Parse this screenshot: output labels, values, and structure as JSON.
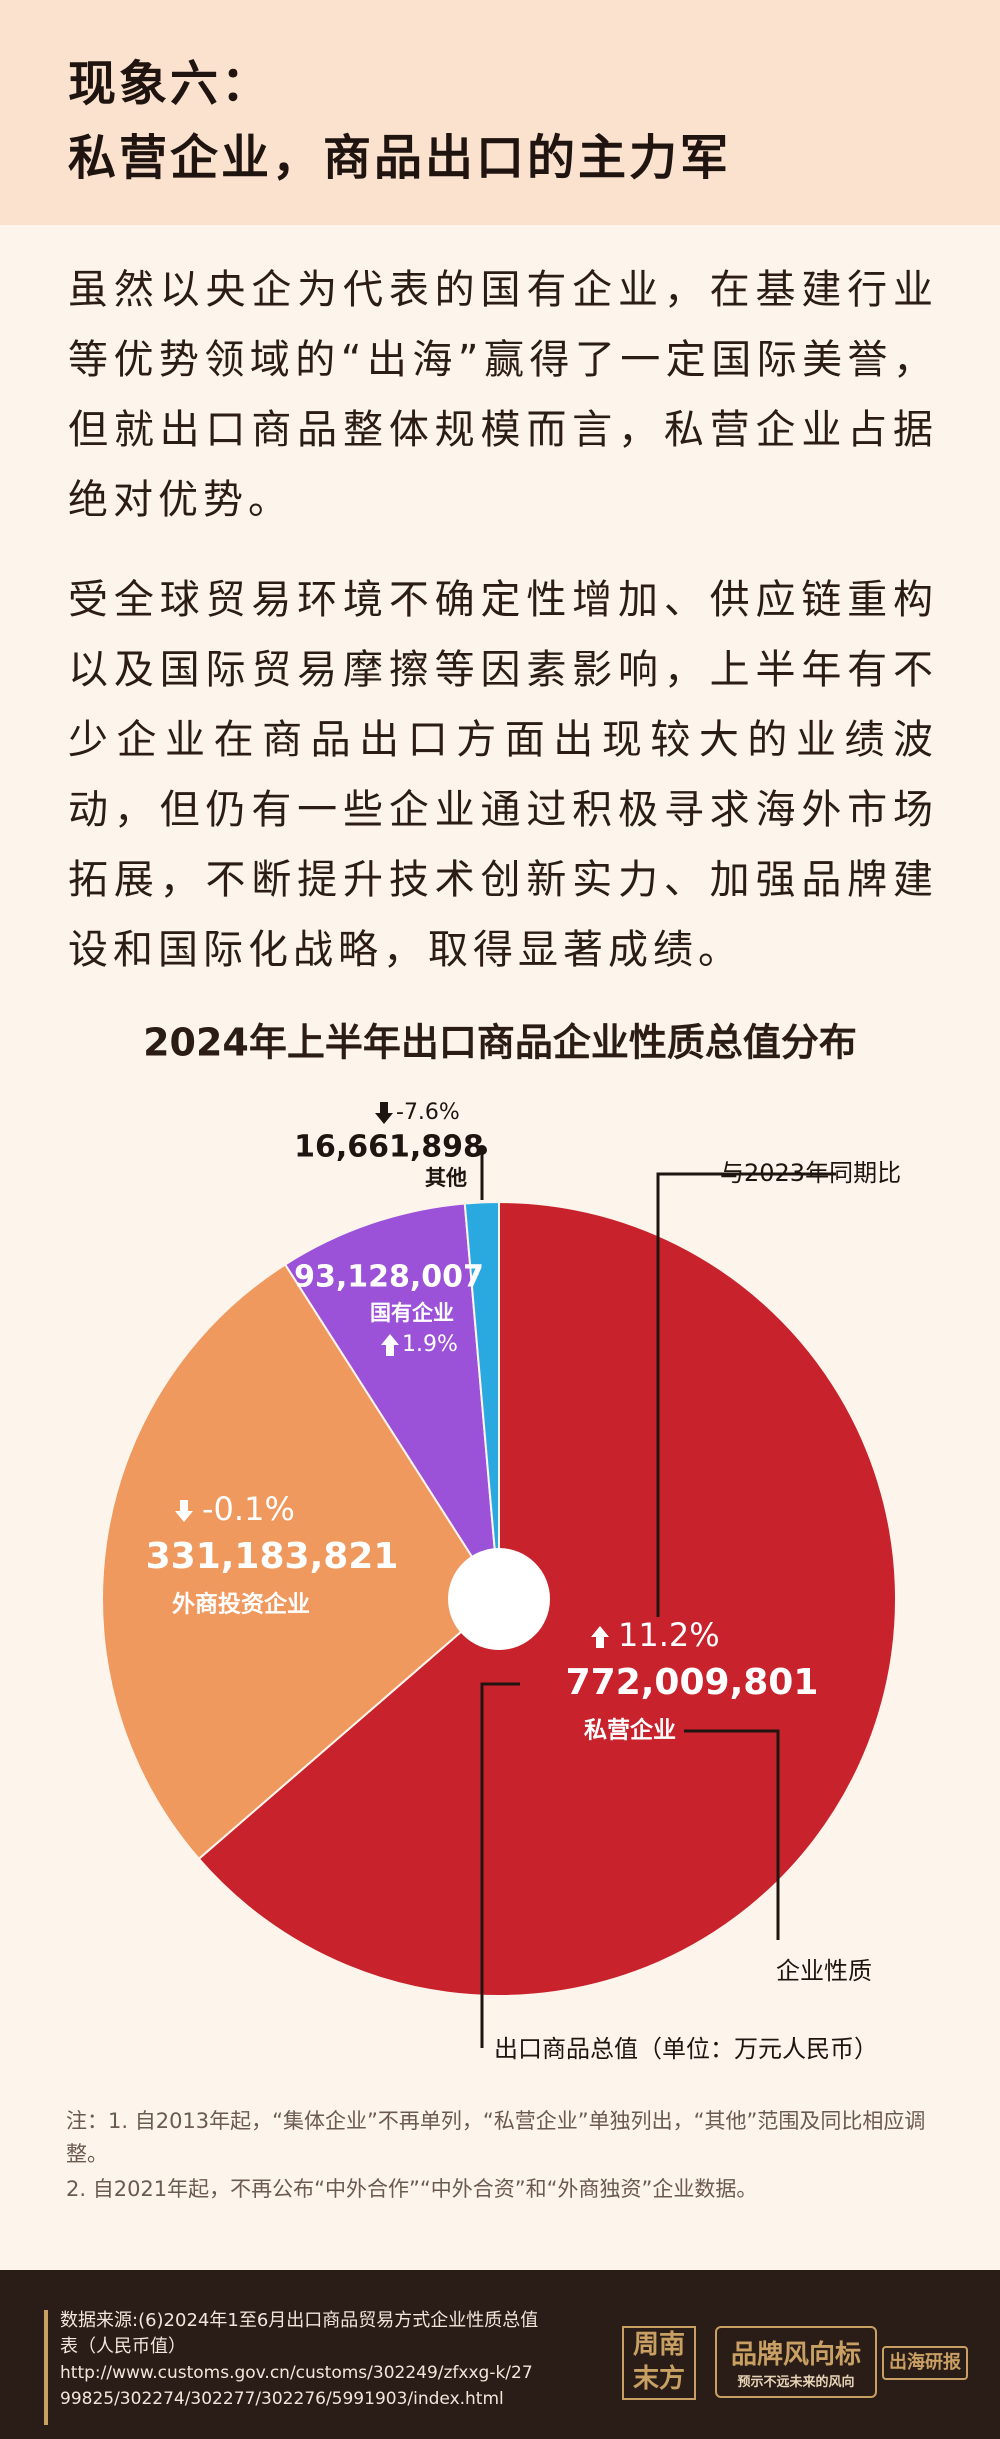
{
  "header": {
    "title_line1": "现象六：",
    "title_line2": "私营企业，商品出口的主力军"
  },
  "paragraphs": [
    "虽然以央企为代表的国有企业，在基建行业等优势领域的“出海”赢得了一定国际美誉，但就出口商品整体规模而言，私营企业占据绝对优势。",
    "受全球贸易环境不确定性增加、供应链重构以及国际贸易摩擦等因素影响，上半年有不少企业在商品出口方面出现较大的业绩波动，但仍有一些企业通过积极寻求海外市场拓展，不断提升技术创新实力、加强品牌建设和国际化战略，取得显著成绩。"
  ],
  "chart_data": {
    "type": "pie",
    "title": "2024年上半年出口商品企业性质总值分布",
    "categories": [
      "私营企业",
      "外商投资企业",
      "国有企业",
      "其他"
    ],
    "values": [
      772009801,
      331183821,
      93128007,
      16661898
    ],
    "value_labels": [
      "772,009,801",
      "331,183,821",
      "93,128,007",
      "16,661,898"
    ],
    "colors": [
      "#c8232c",
      "#f0995e",
      "#9b52d8",
      "#2aa9e0"
    ],
    "changes": [
      11.2,
      -0.1,
      1.9,
      -7.6
    ],
    "change_labels": [
      "11.2%",
      "-0.1%",
      "1.9%",
      "-7.6%"
    ],
    "annotations": [
      "与2023年同期比",
      "企业性质",
      "出口商品总值（单位：万元人民币）"
    ]
  },
  "notes": [
    "注：1. 自2013年起，“集体企业”不再单列，“私营企业”单独列出，“其他”范围及同比相应调整。",
    "2. 自2021年起，不再公布“中外合作”“中外合资”和“外商独资”企业数据。"
  ],
  "footer": {
    "source": "数据来源:(6)2024年1至6月出口商品贸易方式企业性质总值表（人民币值）",
    "url": "http://www.customs.gov.cn/customs/302249/zfxxg-k/2799825/302274/302277/302276/5991903/index.html",
    "logo_chars": [
      "周",
      "南",
      "末",
      "方"
    ],
    "brand": "品牌风向标",
    "brand_sub": "预示不远未来的风向",
    "tag": "出海研报"
  }
}
